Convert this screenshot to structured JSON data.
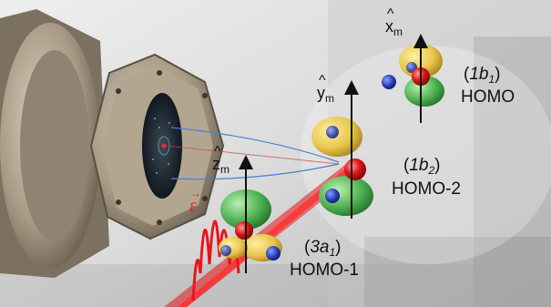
{
  "orbitals": [
    {
      "id": "1b1",
      "symmetry_base": "1b",
      "symmetry_sub": "1",
      "name": "HOMO",
      "axis_base": "x",
      "axis_sub": "m"
    },
    {
      "id": "1b2",
      "symmetry_base": "1b",
      "symmetry_sub": "2",
      "name": "HOMO-2",
      "axis_base": "y",
      "axis_sub": "m"
    },
    {
      "id": "3a1",
      "symmetry_base": "3a",
      "symmetry_sub": "1",
      "name": "HOMO-1",
      "axis_base": "z",
      "axis_sub": "m"
    }
  ],
  "field": {
    "symbol": "ε",
    "arrow": "→"
  },
  "hat": "^",
  "paren_open": "(",
  "paren_close": ")",
  "colors": {
    "lobe_yellow": "#e8c44a",
    "lobe_green": "#4caf50",
    "oxygen_red": "#e01818",
    "hydrogen_blue": "#2a3fbf",
    "laser_red": "#e8141c",
    "trajectory_blue": "#4a7fd0",
    "trajectory_red": "#d04040"
  }
}
